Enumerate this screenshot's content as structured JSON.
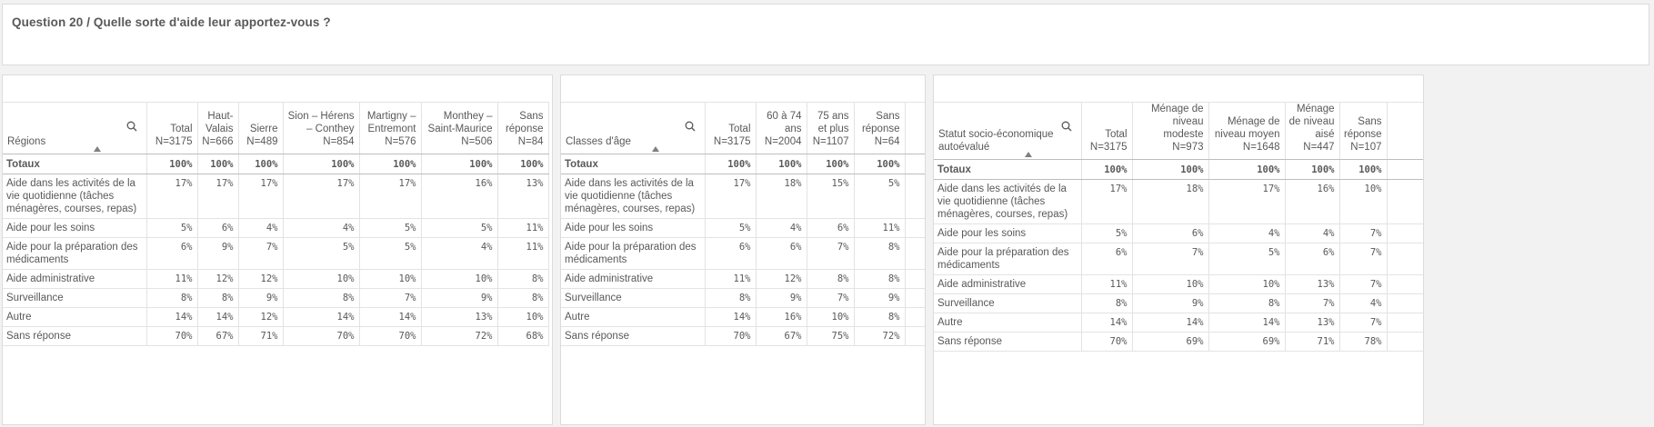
{
  "page_title": "Question 20 / Quelle sorte d'aide leur apportez-vous ?",
  "row_labels": {
    "total": "Totaux",
    "rows": [
      "Aide dans les activités de la vie quotidienne (tâches ménagères, courses, repas)",
      "Aide pour les soins",
      "Aide pour la préparation des médicaments",
      "Aide administrative",
      "Surveillance",
      "Autre",
      "Sans réponse"
    ]
  },
  "tables": [
    {
      "dimension": "Régions",
      "columns": [
        {
          "header": "Total N=3175",
          "total": "100%",
          "values": [
            "17%",
            "5%",
            "6%",
            "11%",
            "8%",
            "14%",
            "70%"
          ]
        },
        {
          "header": "Haut-Valais N=666",
          "total": "100%",
          "values": [
            "17%",
            "6%",
            "9%",
            "12%",
            "8%",
            "14%",
            "67%"
          ]
        },
        {
          "header": "Sierre N=489",
          "total": "100%",
          "values": [
            "17%",
            "4%",
            "7%",
            "12%",
            "9%",
            "12%",
            "71%"
          ]
        },
        {
          "header": "Sion – Hérens – Conthey N=854",
          "total": "100%",
          "values": [
            "17%",
            "4%",
            "5%",
            "10%",
            "8%",
            "14%",
            "70%"
          ]
        },
        {
          "header": "Martigny – Entremont N=576",
          "total": "100%",
          "values": [
            "17%",
            "5%",
            "5%",
            "10%",
            "7%",
            "14%",
            "70%"
          ]
        },
        {
          "header": "Monthey – Saint-Maurice N=506",
          "total": "100%",
          "values": [
            "16%",
            "5%",
            "4%",
            "10%",
            "9%",
            "13%",
            "72%"
          ]
        },
        {
          "header": "Sans réponse N=84",
          "total": "100%",
          "values": [
            "13%",
            "11%",
            "11%",
            "8%",
            "8%",
            "10%",
            "68%"
          ]
        }
      ]
    },
    {
      "dimension": "Classes d'âge",
      "columns": [
        {
          "header": "Total N=3175",
          "total": "100%",
          "values": [
            "17%",
            "5%",
            "6%",
            "11%",
            "8%",
            "14%",
            "70%"
          ]
        },
        {
          "header": "60 à 74 ans N=2004",
          "total": "100%",
          "values": [
            "18%",
            "4%",
            "6%",
            "12%",
            "9%",
            "16%",
            "67%"
          ]
        },
        {
          "header": "75 ans et plus N=1107",
          "total": "100%",
          "values": [
            "15%",
            "6%",
            "7%",
            "8%",
            "7%",
            "10%",
            "75%"
          ]
        },
        {
          "header": "Sans réponse N=64",
          "total": "100%",
          "values": [
            "5%",
            "11%",
            "8%",
            "8%",
            "9%",
            "8%",
            "72%"
          ]
        }
      ]
    },
    {
      "dimension": "Statut socio-économique autoévalué",
      "columns": [
        {
          "header": "Total N=3175",
          "total": "100%",
          "values": [
            "17%",
            "5%",
            "6%",
            "11%",
            "8%",
            "14%",
            "70%"
          ]
        },
        {
          "header": "Ménage de niveau modeste N=973",
          "total": "100%",
          "values": [
            "18%",
            "6%",
            "7%",
            "10%",
            "9%",
            "14%",
            "69%"
          ]
        },
        {
          "header": "Ménage de niveau moyen N=1648",
          "total": "100%",
          "values": [
            "17%",
            "4%",
            "5%",
            "10%",
            "8%",
            "14%",
            "69%"
          ]
        },
        {
          "header": "Ménage de niveau aisé N=447",
          "total": "100%",
          "values": [
            "16%",
            "4%",
            "6%",
            "13%",
            "7%",
            "13%",
            "71%"
          ]
        },
        {
          "header": "Sans réponse N=107",
          "total": "100%",
          "values": [
            "10%",
            "7%",
            "7%",
            "7%",
            "4%",
            "7%",
            "78%"
          ]
        }
      ]
    }
  ],
  "icons": {
    "search": "search-icon",
    "sort": "sort-ascending-icon"
  }
}
